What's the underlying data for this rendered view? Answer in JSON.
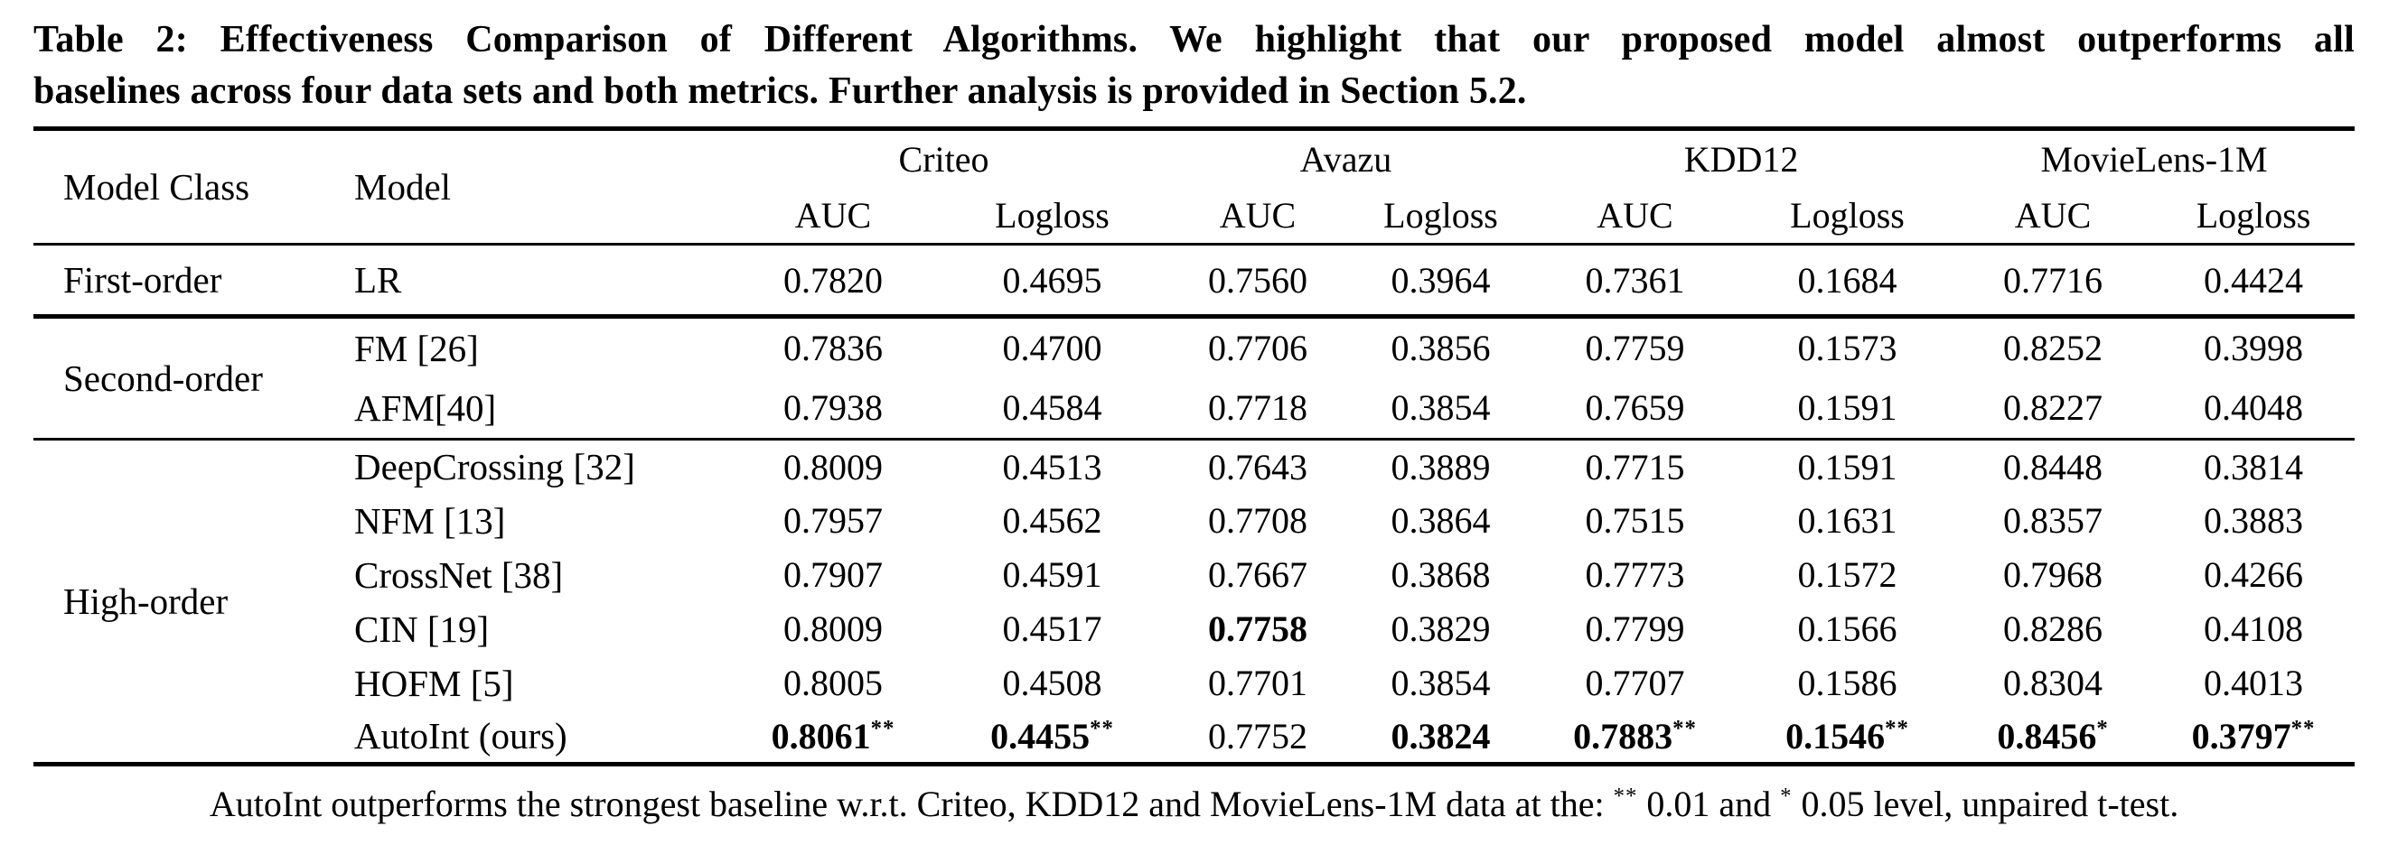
{
  "caption": {
    "line1": "Table 2: Effectiveness Comparison of Different Algorithms. We highlight that our proposed model almost outperforms all",
    "line2": "baselines across four data sets and both metrics. Further analysis is provided in Section 5.2."
  },
  "table": {
    "col_headers": {
      "model_class": "Model Class",
      "model": "Model",
      "datasets": [
        "Criteo",
        "Avazu",
        "KDD12",
        "MovieLens-1M"
      ],
      "metrics": [
        "AUC",
        "Logloss"
      ]
    },
    "groups": [
      {
        "model_class": "First-order",
        "rows": [
          {
            "model": "LR",
            "cells": [
              {
                "v": "0.7820",
                "bold": false,
                "sig": ""
              },
              {
                "v": "0.4695",
                "bold": false,
                "sig": ""
              },
              {
                "v": "0.7560",
                "bold": false,
                "sig": ""
              },
              {
                "v": "0.3964",
                "bold": false,
                "sig": ""
              },
              {
                "v": "0.7361",
                "bold": false,
                "sig": ""
              },
              {
                "v": "0.1684",
                "bold": false,
                "sig": ""
              },
              {
                "v": "0.7716",
                "bold": false,
                "sig": ""
              },
              {
                "v": "0.4424",
                "bold": false,
                "sig": ""
              }
            ]
          }
        ]
      },
      {
        "model_class": "Second-order",
        "rows": [
          {
            "model": "FM [26]",
            "cells": [
              {
                "v": "0.7836",
                "bold": false,
                "sig": ""
              },
              {
                "v": "0.4700",
                "bold": false,
                "sig": ""
              },
              {
                "v": "0.7706",
                "bold": false,
                "sig": ""
              },
              {
                "v": "0.3856",
                "bold": false,
                "sig": ""
              },
              {
                "v": "0.7759",
                "bold": false,
                "sig": ""
              },
              {
                "v": "0.1573",
                "bold": false,
                "sig": ""
              },
              {
                "v": "0.8252",
                "bold": false,
                "sig": ""
              },
              {
                "v": "0.3998",
                "bold": false,
                "sig": ""
              }
            ]
          },
          {
            "model": "AFM[40]",
            "cells": [
              {
                "v": "0.7938",
                "bold": false,
                "sig": ""
              },
              {
                "v": "0.4584",
                "bold": false,
                "sig": ""
              },
              {
                "v": "0.7718",
                "bold": false,
                "sig": ""
              },
              {
                "v": "0.3854",
                "bold": false,
                "sig": ""
              },
              {
                "v": "0.7659",
                "bold": false,
                "sig": ""
              },
              {
                "v": "0.1591",
                "bold": false,
                "sig": ""
              },
              {
                "v": "0.8227",
                "bold": false,
                "sig": ""
              },
              {
                "v": "0.4048",
                "bold": false,
                "sig": ""
              }
            ]
          }
        ]
      },
      {
        "model_class": "High-order",
        "rows": [
          {
            "model": "DeepCrossing [32]",
            "cells": [
              {
                "v": "0.8009",
                "bold": false,
                "sig": ""
              },
              {
                "v": "0.4513",
                "bold": false,
                "sig": ""
              },
              {
                "v": "0.7643",
                "bold": false,
                "sig": ""
              },
              {
                "v": "0.3889",
                "bold": false,
                "sig": ""
              },
              {
                "v": "0.7715",
                "bold": false,
                "sig": ""
              },
              {
                "v": "0.1591",
                "bold": false,
                "sig": ""
              },
              {
                "v": "0.8448",
                "bold": false,
                "sig": ""
              },
              {
                "v": "0.3814",
                "bold": false,
                "sig": ""
              }
            ]
          },
          {
            "model": "NFM [13]",
            "cells": [
              {
                "v": "0.7957",
                "bold": false,
                "sig": ""
              },
              {
                "v": "0.4562",
                "bold": false,
                "sig": ""
              },
              {
                "v": "0.7708",
                "bold": false,
                "sig": ""
              },
              {
                "v": "0.3864",
                "bold": false,
                "sig": ""
              },
              {
                "v": "0.7515",
                "bold": false,
                "sig": ""
              },
              {
                "v": "0.1631",
                "bold": false,
                "sig": ""
              },
              {
                "v": "0.8357",
                "bold": false,
                "sig": ""
              },
              {
                "v": "0.3883",
                "bold": false,
                "sig": ""
              }
            ]
          },
          {
            "model": "CrossNet [38]",
            "cells": [
              {
                "v": "0.7907",
                "bold": false,
                "sig": ""
              },
              {
                "v": "0.4591",
                "bold": false,
                "sig": ""
              },
              {
                "v": "0.7667",
                "bold": false,
                "sig": ""
              },
              {
                "v": "0.3868",
                "bold": false,
                "sig": ""
              },
              {
                "v": "0.7773",
                "bold": false,
                "sig": ""
              },
              {
                "v": "0.1572",
                "bold": false,
                "sig": ""
              },
              {
                "v": "0.7968",
                "bold": false,
                "sig": ""
              },
              {
                "v": "0.4266",
                "bold": false,
                "sig": ""
              }
            ]
          },
          {
            "model": "CIN [19]",
            "cells": [
              {
                "v": "0.8009",
                "bold": false,
                "sig": ""
              },
              {
                "v": "0.4517",
                "bold": false,
                "sig": ""
              },
              {
                "v": "0.7758",
                "bold": true,
                "sig": ""
              },
              {
                "v": "0.3829",
                "bold": false,
                "sig": ""
              },
              {
                "v": "0.7799",
                "bold": false,
                "sig": ""
              },
              {
                "v": "0.1566",
                "bold": false,
                "sig": ""
              },
              {
                "v": "0.8286",
                "bold": false,
                "sig": ""
              },
              {
                "v": "0.4108",
                "bold": false,
                "sig": ""
              }
            ]
          },
          {
            "model": "HOFM [5]",
            "cells": [
              {
                "v": "0.8005",
                "bold": false,
                "sig": ""
              },
              {
                "v": "0.4508",
                "bold": false,
                "sig": ""
              },
              {
                "v": "0.7701",
                "bold": false,
                "sig": ""
              },
              {
                "v": "0.3854",
                "bold": false,
                "sig": ""
              },
              {
                "v": "0.7707",
                "bold": false,
                "sig": ""
              },
              {
                "v": "0.1586",
                "bold": false,
                "sig": ""
              },
              {
                "v": "0.8304",
                "bold": false,
                "sig": ""
              },
              {
                "v": "0.4013",
                "bold": false,
                "sig": ""
              }
            ]
          },
          {
            "model": "AutoInt (ours)",
            "cells": [
              {
                "v": "0.8061",
                "bold": true,
                "sig": "**"
              },
              {
                "v": "0.4455",
                "bold": true,
                "sig": "**"
              },
              {
                "v": "0.7752",
                "bold": false,
                "sig": ""
              },
              {
                "v": "0.3824",
                "bold": true,
                "sig": ""
              },
              {
                "v": "0.7883",
                "bold": true,
                "sig": "**"
              },
              {
                "v": "0.1546",
                "bold": true,
                "sig": "**"
              },
              {
                "v": "0.8456",
                "bold": true,
                "sig": "*"
              },
              {
                "v": "0.3797",
                "bold": true,
                "sig": "**"
              }
            ]
          }
        ]
      }
    ]
  },
  "footnote": {
    "part1": "AutoInt outperforms the strongest baseline w.r.t. Criteo, KDD12 and MovieLens-1M data at the: ",
    "sig_001": "**",
    "part2": " 0.01 and ",
    "sig_005": "*",
    "part3": " 0.05 level, unpaired t-test."
  }
}
